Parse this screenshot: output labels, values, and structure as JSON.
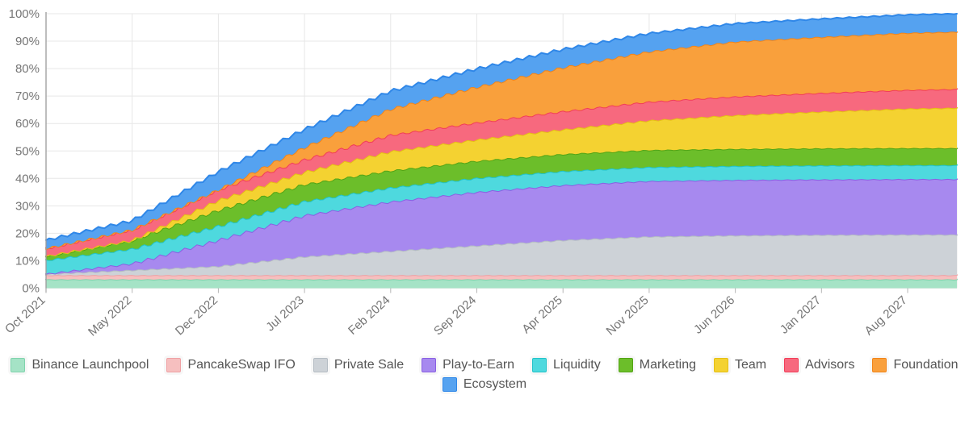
{
  "chart_data": {
    "type": "area",
    "stacked": true,
    "title": "",
    "xlabel": "",
    "ylabel": "",
    "ylim": [
      0,
      100
    ],
    "grid": true,
    "legend_position": "bottom",
    "y_tick_labels": [
      "0%",
      "10%",
      "20%",
      "30%",
      "40%",
      "50%",
      "60%",
      "70%",
      "80%",
      "90%",
      "100%"
    ],
    "x_tick_labels": [
      "Oct 2021",
      "May 2022",
      "Dec 2022",
      "Jul 2023",
      "Feb 2024",
      "Sep 2024",
      "Apr 2025",
      "Nov 2025",
      "Jun 2026",
      "Jan 2027",
      "Aug 2027"
    ],
    "x_tick_months": [
      0,
      7,
      14,
      21,
      28,
      35,
      42,
      49,
      56,
      63,
      70
    ],
    "x_range_months": [
      0,
      74
    ],
    "sample_months": [
      0,
      7,
      14,
      21,
      28,
      35,
      42,
      49,
      56,
      63,
      70,
      74
    ],
    "units": "percent of total supply unlocked",
    "series": [
      {
        "name": "Binance Launchpool",
        "fill": "#a5e3c6",
        "stroke": "#7fd3ac",
        "values": [
          3.2,
          3.2,
          3.2,
          3.2,
          3.2,
          3.2,
          3.2,
          3.2,
          3.2,
          3.2,
          3.2,
          3.2
        ]
      },
      {
        "name": "PancakeSwap IFO",
        "fill": "#f6bfbf",
        "stroke": "#efa0a3",
        "values": [
          1.5,
          1.5,
          1.5,
          1.5,
          1.5,
          1.5,
          1.5,
          1.5,
          1.5,
          1.5,
          1.5,
          1.5
        ]
      },
      {
        "name": "Private Sale",
        "fill": "#cdd2d7",
        "stroke": "#b4bcc3",
        "values": [
          0.5,
          1.9,
          3.3,
          6.8,
          8.8,
          10.8,
          12.8,
          14.1,
          14.5,
          14.7,
          14.8,
          14.8
        ]
      },
      {
        "name": "Play-to-Earn",
        "fill": "#a789ef",
        "stroke": "#8a5fe3",
        "values": [
          0,
          2.4,
          9.5,
          15.0,
          18.0,
          19.5,
          20.0,
          20.2,
          20.2,
          20.2,
          20.2,
          20.2
        ]
      },
      {
        "name": "Liquidity",
        "fill": "#4ed9de",
        "stroke": "#21c3c9",
        "values": [
          5.0,
          5.3,
          5.1,
          5.1,
          5.1,
          5.1,
          5.1,
          5.1,
          5.1,
          5.1,
          5.1,
          5.1
        ]
      },
      {
        "name": "Marketing",
        "fill": "#6cbe2a",
        "stroke": "#53a414",
        "values": [
          1.5,
          3.2,
          5.8,
          6.2,
          6.2,
          6.2,
          6.2,
          6.2,
          6.2,
          6.2,
          6.2,
          6.2
        ]
      },
      {
        "name": "Team",
        "fill": "#f4d231",
        "stroke": "#e5bf13",
        "values": [
          0,
          0,
          3.6,
          4.5,
          7.0,
          7.8,
          9.0,
          10.8,
          12.3,
          13.4,
          14.4,
          14.7
        ]
      },
      {
        "name": "Advisors",
        "fill": "#f7697e",
        "stroke": "#f23d58",
        "values": [
          2.8,
          3.8,
          3.9,
          4.5,
          6.0,
          6.2,
          6.6,
          6.8,
          6.8,
          6.8,
          6.8,
          6.8
        ]
      },
      {
        "name": "Foundation",
        "fill": "#f9a03c",
        "stroke": "#f28418",
        "values": [
          0,
          0,
          0,
          4.5,
          9.5,
          13.0,
          16.0,
          18.3,
          20.0,
          20.4,
          20.8,
          20.9
        ]
      },
      {
        "name": "Ecosystem",
        "fill": "#55a2f0",
        "stroke": "#2f87e8",
        "values": [
          3.0,
          3.3,
          6.5,
          6.5,
          6.5,
          6.6,
          6.6,
          6.6,
          6.6,
          6.6,
          6.6,
          6.6
        ]
      }
    ],
    "legend_rows": [
      9,
      1
    ]
  },
  "style": {
    "axis_text_color": "#757575",
    "gridline_color": "#e7e7e7",
    "axis_line_color": "#9b9b9b",
    "tick_color": "#b5b5b5",
    "background": "#ffffff"
  }
}
